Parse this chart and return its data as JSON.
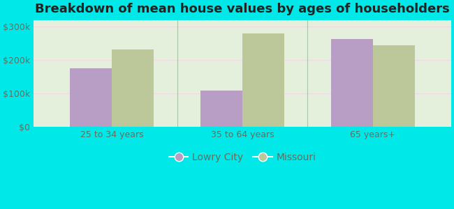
{
  "title": "Breakdown of mean house values by ages of householders",
  "categories": [
    "25 to 34 years",
    "35 to 64 years",
    "65 years+"
  ],
  "lowry_city": [
    175000,
    107000,
    262000
  ],
  "missouri": [
    232000,
    278000,
    244000
  ],
  "bar_color_lowry": "#b89ec4",
  "bar_color_missouri": "#bdc89a",
  "background_outer": "#00e8e8",
  "background_inner_color": "#d6edd6",
  "yticks": [
    0,
    100000,
    200000,
    300000
  ],
  "ytick_labels": [
    "$0",
    "$100k",
    "$200k",
    "$300k"
  ],
  "ylim": [
    0,
    318000
  ],
  "legend_labels": [
    "Lowry City",
    "Missouri"
  ],
  "title_fontsize": 13,
  "tick_fontsize": 9,
  "legend_fontsize": 10,
  "bar_width": 0.32,
  "grid_color": "#e8f0e0",
  "separator_color": "#aaccaa",
  "tick_color": "#607060"
}
